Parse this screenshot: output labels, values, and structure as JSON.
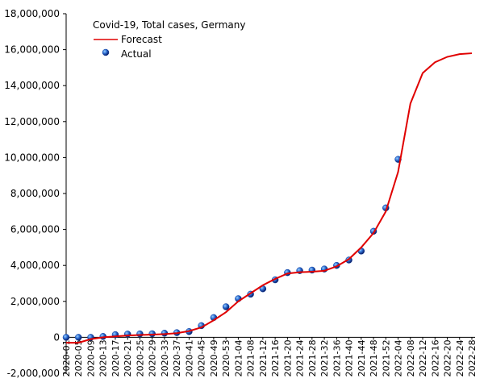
{
  "chart_data": {
    "type": "line",
    "title": "Covid-19, Total cases, Germany",
    "categories": [
      "2020-01",
      "2020-05",
      "2020-09",
      "2020-13",
      "2020-17",
      "2020-21",
      "2020-25",
      "2020-29",
      "2020-33",
      "2020-37",
      "2020-41",
      "2020-45",
      "2020-49",
      "2020-53",
      "2021-04",
      "2021-08",
      "2021-12",
      "2021-16",
      "2021-20",
      "2021-24",
      "2021-28",
      "2021-32",
      "2021-36",
      "2021-40",
      "2021-44",
      "2021-48",
      "2021-52",
      "2022-04",
      "2022-08",
      "2022-12",
      "2022-16",
      "2022-20",
      "2022-24",
      "2022-28"
    ],
    "series": [
      {
        "name": "Forecast",
        "color": "#e00000",
        "style": "line",
        "values": [
          -300000,
          -300000,
          -100000,
          0,
          50000,
          100000,
          130000,
          150000,
          180000,
          230000,
          350000,
          550000,
          950000,
          1400000,
          2000000,
          2450000,
          2900000,
          3250000,
          3550000,
          3620000,
          3650000,
          3700000,
          3950000,
          4350000,
          5000000,
          5800000,
          7000000,
          9200000,
          13000000,
          14700000,
          15300000,
          15600000,
          15750000,
          15800000
        ]
      },
      {
        "name": "Actual",
        "color": "#1040a0",
        "style": "dots",
        "values": [
          0,
          0,
          0,
          50000,
          150000,
          180000,
          190000,
          200000,
          230000,
          260000,
          320000,
          650000,
          1100000,
          1700000,
          2150000,
          2400000,
          2700000,
          3200000,
          3600000,
          3710000,
          3740000,
          3800000,
          4000000,
          4300000,
          4800000,
          5900000,
          7200000,
          9900000,
          null,
          null,
          null,
          null,
          null,
          null
        ]
      }
    ],
    "ylim": [
      -2000000,
      18000000
    ],
    "yticks": [
      {
        "value": -2000000,
        "label": "-2,000,000"
      },
      0,
      {
        "value": 2000000,
        "label": "2,000,000"
      },
      {
        "value": 4000000,
        "label": "4,000,000"
      },
      {
        "value": 6000000,
        "label": "6,000,000"
      },
      {
        "value": 8000000,
        "label": "8,000,000"
      },
      {
        "value": 10000000,
        "label": "10,000,000"
      },
      {
        "value": 12000000,
        "label": "12,000,000"
      },
      {
        "value": 14000000,
        "label": "14,000,000"
      },
      {
        "value": 16000000,
        "label": "16,000,000"
      },
      {
        "value": 18000000,
        "label": "18,000,000"
      }
    ],
    "legend": "top-left"
  }
}
